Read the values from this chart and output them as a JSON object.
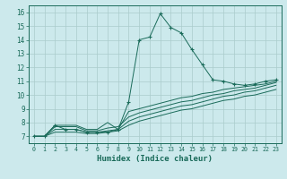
{
  "xlabel": "Humidex (Indice chaleur)",
  "bg_color": "#cce9ec",
  "grid_color": "#aacccc",
  "line_color": "#1a6b5a",
  "text_color": "#1a6b5a",
  "xlim": [
    -0.5,
    23.5
  ],
  "ylim": [
    6.5,
    16.5
  ],
  "xticks": [
    0,
    1,
    2,
    3,
    4,
    5,
    6,
    7,
    8,
    9,
    10,
    11,
    12,
    13,
    14,
    15,
    16,
    17,
    18,
    19,
    20,
    21,
    22,
    23
  ],
  "yticks": [
    7,
    8,
    9,
    10,
    11,
    12,
    13,
    14,
    15,
    16
  ],
  "lines": [
    {
      "x": [
        0,
        1,
        2,
        3,
        4,
        5,
        6,
        7,
        8,
        9,
        10,
        11,
        12,
        13,
        14,
        15,
        16,
        17,
        18,
        19,
        20,
        21,
        22,
        23
      ],
      "y": [
        7.0,
        7.0,
        7.8,
        7.5,
        7.5,
        7.3,
        7.3,
        7.3,
        7.5,
        9.5,
        14.0,
        14.2,
        15.9,
        14.9,
        14.5,
        13.3,
        12.2,
        11.1,
        11.0,
        10.8,
        10.7,
        10.8,
        11.0,
        11.1
      ],
      "marker": true
    },
    {
      "x": [
        0,
        1,
        2,
        3,
        4,
        5,
        6,
        7,
        8,
        9,
        10,
        11,
        12,
        13,
        14,
        15,
        16,
        17,
        18,
        19,
        20,
        21,
        22,
        23
      ],
      "y": [
        7.0,
        7.0,
        7.8,
        7.8,
        7.8,
        7.5,
        7.5,
        8.0,
        7.5,
        8.8,
        9.0,
        9.2,
        9.4,
        9.6,
        9.8,
        9.9,
        10.1,
        10.2,
        10.4,
        10.5,
        10.6,
        10.7,
        10.8,
        11.0
      ],
      "marker": false
    },
    {
      "x": [
        0,
        1,
        2,
        3,
        4,
        5,
        6,
        7,
        8,
        9,
        10,
        11,
        12,
        13,
        14,
        15,
        16,
        17,
        18,
        19,
        20,
        21,
        22,
        23
      ],
      "y": [
        7.0,
        7.0,
        7.7,
        7.7,
        7.7,
        7.4,
        7.4,
        7.6,
        7.7,
        8.4,
        8.7,
        8.9,
        9.1,
        9.3,
        9.5,
        9.6,
        9.8,
        10.0,
        10.1,
        10.3,
        10.4,
        10.5,
        10.7,
        10.9
      ],
      "marker": false
    },
    {
      "x": [
        0,
        1,
        2,
        3,
        4,
        5,
        6,
        7,
        8,
        9,
        10,
        11,
        12,
        13,
        14,
        15,
        16,
        17,
        18,
        19,
        20,
        21,
        22,
        23
      ],
      "y": [
        7.0,
        7.0,
        7.5,
        7.5,
        7.5,
        7.3,
        7.3,
        7.4,
        7.5,
        8.1,
        8.4,
        8.6,
        8.8,
        9.0,
        9.2,
        9.3,
        9.5,
        9.7,
        9.9,
        10.0,
        10.2,
        10.3,
        10.5,
        10.7
      ],
      "marker": false
    },
    {
      "x": [
        0,
        1,
        2,
        3,
        4,
        5,
        6,
        7,
        8,
        9,
        10,
        11,
        12,
        13,
        14,
        15,
        16,
        17,
        18,
        19,
        20,
        21,
        22,
        23
      ],
      "y": [
        7.0,
        7.0,
        7.3,
        7.3,
        7.3,
        7.2,
        7.2,
        7.3,
        7.4,
        7.8,
        8.1,
        8.3,
        8.5,
        8.7,
        8.9,
        9.0,
        9.2,
        9.4,
        9.6,
        9.7,
        9.9,
        10.0,
        10.2,
        10.4
      ],
      "marker": false
    }
  ]
}
